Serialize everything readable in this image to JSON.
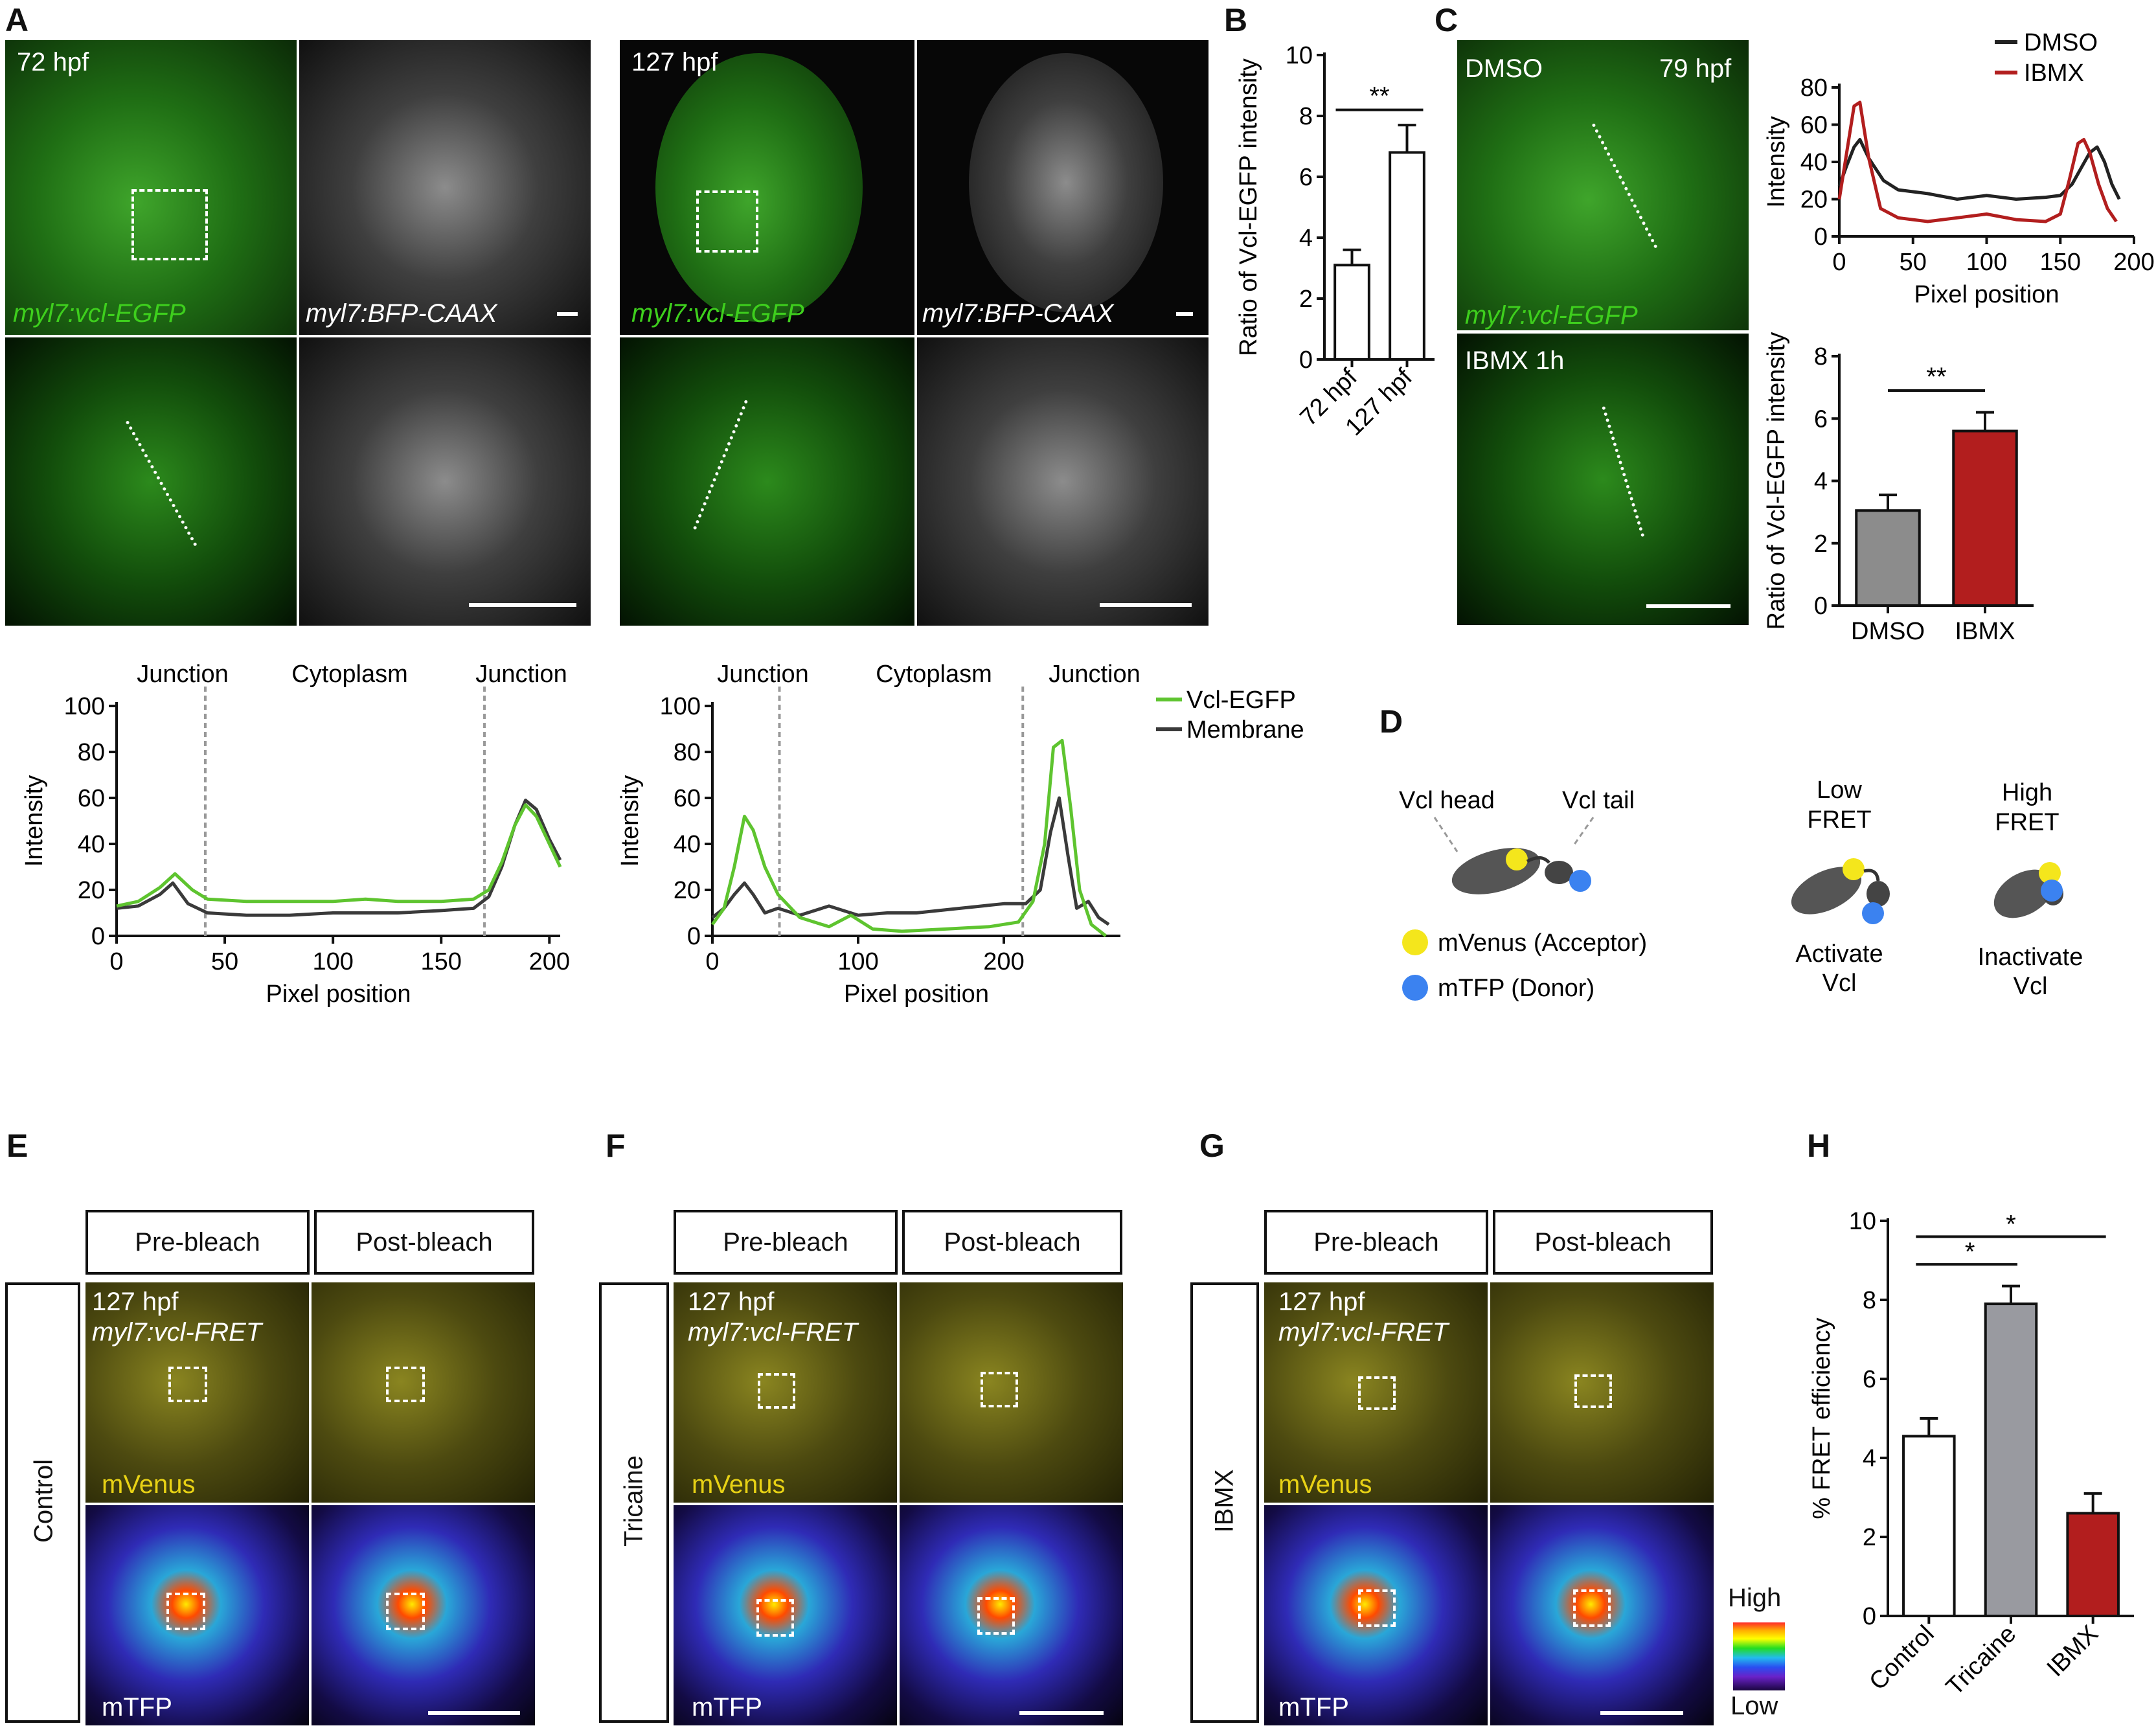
{
  "panels": {
    "A": "A",
    "B": "B",
    "C": "C",
    "D": "D",
    "E": "E",
    "F": "F",
    "G": "G",
    "H": "H"
  },
  "panelA": {
    "left_time": "72 hpf",
    "right_time": "127 hpf",
    "green_label": "myl7:vcl-EGFP",
    "gray_label": "myl7:BFP-CAAX",
    "region_labels": [
      "Junction",
      "Cytoplasm",
      "Junction"
    ],
    "legend": [
      "Vcl-EGFP",
      "Membrane"
    ],
    "colors": {
      "egfp": "#5ec42f",
      "membrane": "#3a3a3a"
    }
  },
  "panelC": {
    "dmso_label": "DMSO",
    "time": "79 hpf",
    "green_label": "myl7:vcl-EGFP",
    "ibmx_label": "IBMX 1h",
    "legend": [
      "DMSO",
      "IBMX"
    ],
    "colors": {
      "dmso": "#222222",
      "ibmx": "#b21e1e"
    }
  },
  "panelD": {
    "head": "Vcl head",
    "tail": "Vcl tail",
    "acceptor": "mVenus (Acceptor)",
    "donor": "mTFP (Donor)",
    "low_fret": [
      "Low",
      "FRET"
    ],
    "high_fret": [
      "High",
      "FRET"
    ],
    "activate": [
      "Activate",
      "Vcl"
    ],
    "inactivate": [
      "Inactivate",
      "Vcl"
    ],
    "colors": {
      "venus": "#f4e61c",
      "tfp": "#3b82f0"
    }
  },
  "fret_panels": {
    "pre": "Pre-bleach",
    "post": "Post-bleach",
    "time": "127 hpf",
    "construct": "myl7:vcl-FRET",
    "venus": "mVenus",
    "tfp": "mTFP",
    "conditions": [
      "Control",
      "Tricaine",
      "IBMX"
    ],
    "scale_high": "High",
    "scale_low": "Low"
  },
  "chart_data": [
    {
      "id": "A-left-profile",
      "type": "line",
      "xlabel": "Pixel position",
      "ylabel": "Intensity",
      "xlim": [
        0,
        205
      ],
      "ylim": [
        0,
        100
      ],
      "xticks": [
        0,
        50,
        100,
        150,
        200
      ],
      "yticks": [
        0,
        20,
        40,
        60,
        80,
        100
      ],
      "dividers": [
        41,
        170
      ],
      "series": [
        {
          "name": "Vcl-EGFP",
          "x": [
            0,
            10,
            20,
            27,
            35,
            42,
            60,
            80,
            100,
            115,
            130,
            150,
            165,
            172,
            178,
            184,
            189,
            194,
            200,
            205
          ],
          "y": [
            13,
            15,
            21,
            27,
            20,
            16,
            15,
            15,
            15,
            16,
            15,
            15,
            16,
            20,
            32,
            48,
            57,
            52,
            40,
            30
          ]
        },
        {
          "name": "Membrane",
          "x": [
            0,
            10,
            20,
            26,
            33,
            42,
            60,
            80,
            100,
            115,
            130,
            150,
            165,
            172,
            178,
            184,
            189,
            194,
            200,
            205
          ],
          "y": [
            12,
            13,
            18,
            23,
            14,
            10,
            9,
            9,
            10,
            10,
            10,
            11,
            12,
            17,
            30,
            48,
            59,
            55,
            42,
            33
          ]
        }
      ]
    },
    {
      "id": "A-right-profile",
      "type": "line",
      "xlabel": "Pixel position",
      "ylabel": "Intensity",
      "xlim": [
        0,
        280
      ],
      "ylim": [
        0,
        100
      ],
      "xticks": [
        0,
        100,
        200
      ],
      "yticks": [
        0,
        20,
        40,
        60,
        80,
        100
      ],
      "dividers": [
        46,
        213
      ],
      "series": [
        {
          "name": "Vcl-EGFP",
          "x": [
            0,
            8,
            15,
            22,
            28,
            36,
            45,
            60,
            80,
            95,
            110,
            130,
            160,
            190,
            210,
            220,
            228,
            234,
            240,
            246,
            252,
            260,
            270
          ],
          "y": [
            5,
            12,
            30,
            52,
            46,
            30,
            18,
            8,
            4,
            9,
            3,
            2,
            3,
            4,
            6,
            15,
            40,
            82,
            85,
            55,
            20,
            5,
            0
          ]
        },
        {
          "name": "Membrane",
          "x": [
            0,
            8,
            15,
            22,
            28,
            36,
            45,
            60,
            80,
            100,
            120,
            140,
            170,
            200,
            215,
            225,
            232,
            238,
            244,
            250,
            258,
            265,
            272
          ],
          "y": [
            8,
            12,
            18,
            23,
            18,
            10,
            12,
            9,
            13,
            9,
            10,
            10,
            12,
            14,
            14,
            20,
            45,
            60,
            35,
            12,
            15,
            8,
            5
          ]
        }
      ]
    },
    {
      "id": "B-ratio",
      "type": "bar",
      "ylabel": "Ratio of Vcl-EGFP intensity",
      "categories": [
        "72 hpf",
        "127 hpf"
      ],
      "values": [
        3.1,
        6.8
      ],
      "errors": [
        0.5,
        0.9
      ],
      "ylim": [
        0,
        10
      ],
      "yticks": [
        0,
        2,
        4,
        6,
        8,
        10
      ],
      "significance": "**"
    },
    {
      "id": "C-profile",
      "type": "line",
      "xlabel": "Pixel position",
      "ylabel": "Intensity",
      "xlim": [
        0,
        200
      ],
      "ylim": [
        0,
        80
      ],
      "xticks": [
        0,
        50,
        100,
        150,
        200
      ],
      "yticks": [
        0,
        20,
        40,
        60,
        80
      ],
      "series": [
        {
          "name": "DMSO",
          "x": [
            0,
            5,
            10,
            14,
            20,
            30,
            40,
            60,
            80,
            100,
            120,
            140,
            150,
            158,
            165,
            170,
            175,
            180,
            185,
            190
          ],
          "y": [
            27,
            38,
            48,
            52,
            42,
            30,
            25,
            23,
            20,
            22,
            20,
            21,
            22,
            28,
            38,
            45,
            48,
            40,
            28,
            20
          ]
        },
        {
          "name": "IBMX",
          "x": [
            0,
            5,
            10,
            14,
            20,
            28,
            40,
            60,
            80,
            100,
            120,
            140,
            150,
            156,
            162,
            166,
            170,
            176,
            182,
            188
          ],
          "y": [
            20,
            45,
            70,
            72,
            42,
            15,
            10,
            8,
            10,
            12,
            9,
            8,
            12,
            30,
            50,
            52,
            45,
            28,
            15,
            8
          ]
        }
      ]
    },
    {
      "id": "C-ratio",
      "type": "bar",
      "ylabel": "Ratio of Vcl-EGFP intensity",
      "categories": [
        "DMSO",
        "IBMX"
      ],
      "values": [
        3.05,
        5.6
      ],
      "errors": [
        0.5,
        0.6
      ],
      "ylim": [
        0,
        8
      ],
      "yticks": [
        0,
        2,
        4,
        6,
        8
      ],
      "significance": "**",
      "colors": [
        "#8c8c8c",
        "#b21e1e"
      ]
    },
    {
      "id": "H-fret",
      "type": "bar",
      "ylabel": "% FRET efficiency",
      "categories": [
        "Control",
        "Tricaine",
        "IBMX"
      ],
      "values": [
        4.55,
        7.9,
        2.6
      ],
      "errors": [
        0.45,
        0.45,
        0.5
      ],
      "ylim": [
        0,
        10
      ],
      "yticks": [
        0,
        2,
        4,
        6,
        8,
        10
      ],
      "significance": [
        "*",
        "*"
      ],
      "colors": [
        "#ffffff",
        "#999aa0",
        "#b21e1e"
      ]
    }
  ]
}
